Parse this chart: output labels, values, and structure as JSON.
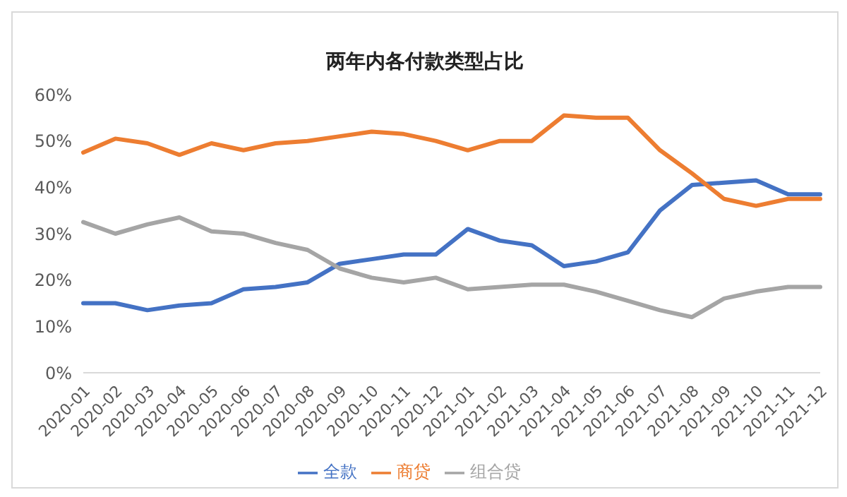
{
  "chart_data": {
    "type": "line",
    "title": "两年内各付款类型占比",
    "categories": [
      "2020-01",
      "2020-02",
      "2020-03",
      "2020-04",
      "2020-05",
      "2020-06",
      "2020-07",
      "2020-08",
      "2020-09",
      "2020-10",
      "2020-11",
      "2020-12",
      "2021-01",
      "2021-02",
      "2021-03",
      "2021-04",
      "2021-05",
      "2021-06",
      "2021-07",
      "2021-08",
      "2021-09",
      "2021-10",
      "2021-11",
      "2021-12"
    ],
    "series": [
      {
        "name": "全款",
        "color": "#4472c4",
        "values": [
          15,
          15,
          13.5,
          14.5,
          15,
          18,
          18.5,
          19.5,
          23.5,
          24.5,
          25.5,
          25.5,
          31,
          28.5,
          27.5,
          23,
          24,
          26,
          35,
          40.5,
          41,
          41.5,
          38.5,
          38.5
        ]
      },
      {
        "name": "商贷",
        "color": "#ed7d31",
        "values": [
          47.5,
          50.5,
          49.5,
          47,
          49.5,
          48,
          49.5,
          50,
          51,
          52,
          51.5,
          50,
          48,
          50,
          50,
          55.5,
          55,
          55,
          48,
          43,
          37.5,
          36,
          37.5,
          37.5
        ]
      },
      {
        "name": "组合贷",
        "color": "#a5a5a5",
        "values": [
          32.5,
          30,
          32,
          33.5,
          30.5,
          30,
          28,
          26.5,
          22.5,
          20.5,
          19.5,
          20.5,
          18,
          18.5,
          19,
          19,
          17.5,
          15.5,
          13.5,
          12,
          16,
          17.5,
          18.5,
          18.5
        ]
      }
    ],
    "ylim": [
      0,
      60
    ],
    "yticks": [
      {
        "value": 0,
        "label": "0%"
      },
      {
        "value": 10,
        "label": "10%"
      },
      {
        "value": 20,
        "label": "20%"
      },
      {
        "value": 30,
        "label": "30%"
      },
      {
        "value": 40,
        "label": "40%"
      },
      {
        "value": 50,
        "label": "50%"
      },
      {
        "value": 60,
        "label": "60%"
      }
    ],
    "grid": false,
    "legend": "bottom",
    "marker": "none",
    "line_style": "solid"
  }
}
